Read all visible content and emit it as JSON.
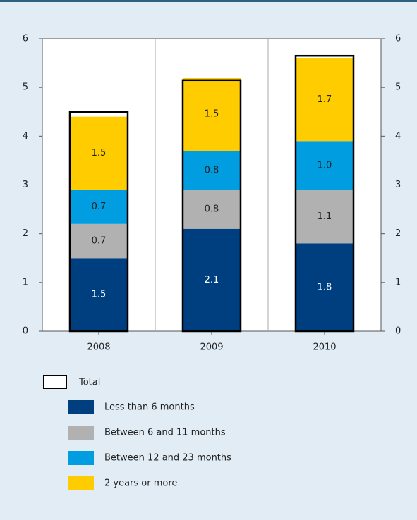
{
  "chart_data": {
    "type": "stacked_bar",
    "categories": [
      "2008",
      "2009",
      "2010"
    ],
    "series": [
      {
        "name": "Less than 6 months",
        "color": "#003f7f",
        "values": [
          1.5,
          2.1,
          1.8
        ],
        "value_labels": [
          "1.5",
          "2.1",
          "1.8"
        ]
      },
      {
        "name": "Between 6 and 11 months",
        "color": "#b1b1b1",
        "values": [
          0.7,
          0.8,
          1.1
        ],
        "value_labels": [
          "0.7",
          "0.8",
          "1.1"
        ]
      },
      {
        "name": "Between 12 and 23 months",
        "color": "#009ee0",
        "values": [
          0.7,
          0.8,
          1.0
        ],
        "value_labels": [
          "0.7",
          "0.8",
          "1.0"
        ]
      },
      {
        "name": "2 years or more",
        "color": "#ffcc00",
        "values": [
          1.5,
          1.5,
          1.7
        ],
        "value_labels": [
          "1.5",
          "1.5",
          "1.7"
        ]
      }
    ],
    "total": {
      "name": "Total",
      "values": [
        4.5,
        5.15,
        5.65
      ]
    },
    "ylim": [
      0,
      6
    ],
    "yticks": [
      0,
      1,
      2,
      3,
      4,
      5,
      6
    ],
    "grid": true
  }
}
